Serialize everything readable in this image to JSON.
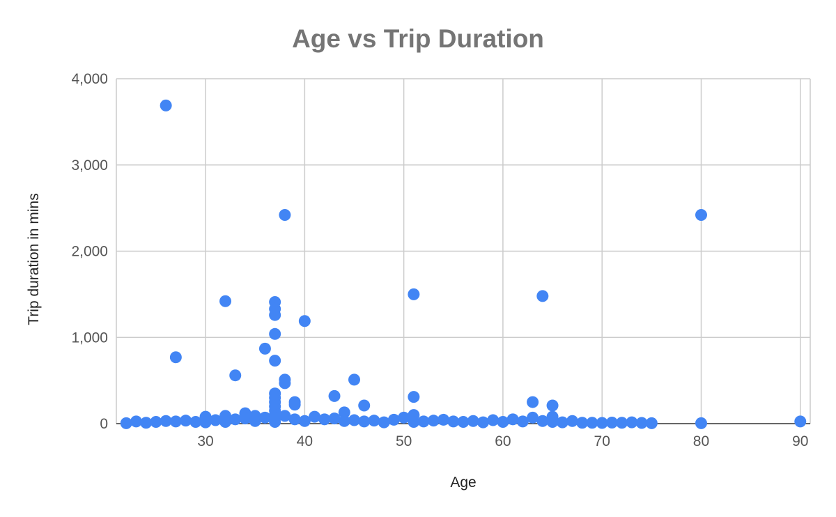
{
  "chart_data": {
    "type": "scatter",
    "title": "Age vs Trip Duration",
    "xlabel": "Age",
    "ylabel": "Trip duration in mins",
    "xlim": [
      21,
      91
    ],
    "ylim": [
      0,
      4000
    ],
    "x_ticks": [
      30,
      40,
      50,
      60,
      70,
      80,
      90
    ],
    "y_ticks": [
      0,
      1000,
      2000,
      3000,
      4000
    ],
    "x_tick_labels": [
      "30",
      "40",
      "50",
      "60",
      "70",
      "80",
      "90"
    ],
    "y_tick_labels": [
      "0",
      "1,000",
      "2,000",
      "3,000",
      "4,000"
    ],
    "grid": true,
    "legend": "none",
    "marker_color": "#4285f4",
    "points": [
      {
        "x": 22,
        "y": 5
      },
      {
        "x": 23,
        "y": 25
      },
      {
        "x": 24,
        "y": 10
      },
      {
        "x": 25,
        "y": 20
      },
      {
        "x": 26,
        "y": 3690
      },
      {
        "x": 26,
        "y": 30
      },
      {
        "x": 27,
        "y": 770
      },
      {
        "x": 27,
        "y": 25
      },
      {
        "x": 28,
        "y": 35
      },
      {
        "x": 29,
        "y": 20
      },
      {
        "x": 30,
        "y": 80
      },
      {
        "x": 30,
        "y": 15
      },
      {
        "x": 31,
        "y": 40
      },
      {
        "x": 32,
        "y": 1420
      },
      {
        "x": 32,
        "y": 90
      },
      {
        "x": 32,
        "y": 20
      },
      {
        "x": 33,
        "y": 560
      },
      {
        "x": 33,
        "y": 50
      },
      {
        "x": 34,
        "y": 120
      },
      {
        "x": 34,
        "y": 60
      },
      {
        "x": 35,
        "y": 90
      },
      {
        "x": 35,
        "y": 30
      },
      {
        "x": 36,
        "y": 870
      },
      {
        "x": 36,
        "y": 70
      },
      {
        "x": 37,
        "y": 1410
      },
      {
        "x": 37,
        "y": 1330
      },
      {
        "x": 37,
        "y": 1260
      },
      {
        "x": 37,
        "y": 1040
      },
      {
        "x": 37,
        "y": 730
      },
      {
        "x": 37,
        "y": 350
      },
      {
        "x": 37,
        "y": 300
      },
      {
        "x": 37,
        "y": 250
      },
      {
        "x": 37,
        "y": 200
      },
      {
        "x": 37,
        "y": 150
      },
      {
        "x": 37,
        "y": 100
      },
      {
        "x": 37,
        "y": 60
      },
      {
        "x": 37,
        "y": 20
      },
      {
        "x": 38,
        "y": 2420
      },
      {
        "x": 38,
        "y": 510
      },
      {
        "x": 38,
        "y": 470
      },
      {
        "x": 38,
        "y": 90
      },
      {
        "x": 39,
        "y": 250
      },
      {
        "x": 39,
        "y": 220
      },
      {
        "x": 39,
        "y": 50
      },
      {
        "x": 40,
        "y": 1190
      },
      {
        "x": 40,
        "y": 30
      },
      {
        "x": 41,
        "y": 80
      },
      {
        "x": 42,
        "y": 50
      },
      {
        "x": 43,
        "y": 320
      },
      {
        "x": 43,
        "y": 60
      },
      {
        "x": 44,
        "y": 130
      },
      {
        "x": 44,
        "y": 30
      },
      {
        "x": 45,
        "y": 510
      },
      {
        "x": 45,
        "y": 40
      },
      {
        "x": 46,
        "y": 210
      },
      {
        "x": 46,
        "y": 25
      },
      {
        "x": 47,
        "y": 35
      },
      {
        "x": 48,
        "y": 15
      },
      {
        "x": 49,
        "y": 45
      },
      {
        "x": 50,
        "y": 70
      },
      {
        "x": 51,
        "y": 1500
      },
      {
        "x": 51,
        "y": 310
      },
      {
        "x": 51,
        "y": 100
      },
      {
        "x": 51,
        "y": 20
      },
      {
        "x": 52,
        "y": 25
      },
      {
        "x": 53,
        "y": 35
      },
      {
        "x": 54,
        "y": 45
      },
      {
        "x": 55,
        "y": 25
      },
      {
        "x": 56,
        "y": 20
      },
      {
        "x": 57,
        "y": 30
      },
      {
        "x": 58,
        "y": 15
      },
      {
        "x": 59,
        "y": 40
      },
      {
        "x": 60,
        "y": 20
      },
      {
        "x": 61,
        "y": 50
      },
      {
        "x": 62,
        "y": 25
      },
      {
        "x": 63,
        "y": 250
      },
      {
        "x": 63,
        "y": 70
      },
      {
        "x": 64,
        "y": 1480
      },
      {
        "x": 64,
        "y": 30
      },
      {
        "x": 65,
        "y": 210
      },
      {
        "x": 65,
        "y": 80
      },
      {
        "x": 65,
        "y": 20
      },
      {
        "x": 66,
        "y": 15
      },
      {
        "x": 67,
        "y": 30
      },
      {
        "x": 68,
        "y": 10
      },
      {
        "x": 69,
        "y": 10
      },
      {
        "x": 70,
        "y": 8
      },
      {
        "x": 71,
        "y": 12
      },
      {
        "x": 72,
        "y": 10
      },
      {
        "x": 73,
        "y": 15
      },
      {
        "x": 74,
        "y": 8
      },
      {
        "x": 75,
        "y": 5
      },
      {
        "x": 80,
        "y": 2420
      },
      {
        "x": 80,
        "y": 5
      },
      {
        "x": 90,
        "y": 25
      }
    ]
  }
}
